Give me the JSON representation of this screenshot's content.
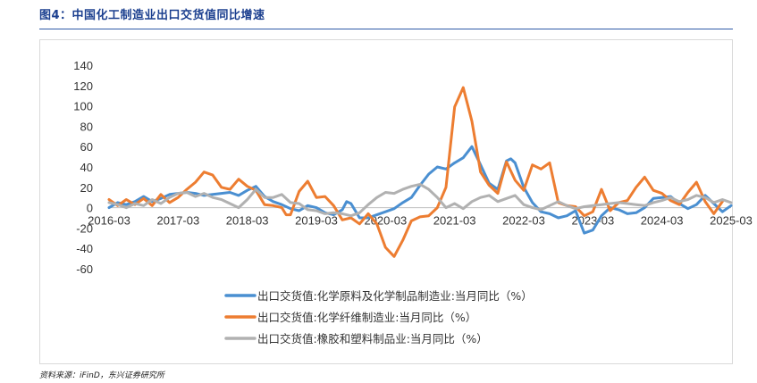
{
  "figure": {
    "title": "图4：中国化工制造业出口交货值同比增速",
    "source": "资料来源：iFinD，东兴证券研究所"
  },
  "chart_data": {
    "type": "line",
    "title": "中国化工制造业出口交货值同比增速",
    "xlabel": "",
    "ylabel": "",
    "ylim": [
      -60,
      140
    ],
    "yticks": [
      -60,
      -40,
      -20,
      0,
      20,
      40,
      60,
      80,
      100,
      120,
      140
    ],
    "x_tick_labels": [
      "2016-03",
      "2017-03",
      "2018-03",
      "2019-03",
      "2020-03",
      "2021-03",
      "2022-03",
      "2023-03",
      "2024-03",
      "2025-03"
    ],
    "x_start": "2016-03",
    "x_end": "2025-03",
    "grid": false,
    "legend_position": "bottom",
    "series": [
      {
        "name": "出口交货值:化学原料及化学制品制造业:当月同比（%）",
        "color": "#4a8fd1",
        "points": [
          [
            0,
            0
          ],
          [
            2,
            5
          ],
          [
            4,
            3
          ],
          [
            6,
            6
          ],
          [
            8,
            11
          ],
          [
            10,
            6
          ],
          [
            12,
            9
          ],
          [
            14,
            13
          ],
          [
            16,
            14
          ],
          [
            18,
            15
          ],
          [
            20,
            14
          ],
          [
            22,
            12
          ],
          [
            24,
            13
          ],
          [
            26,
            14
          ],
          [
            28,
            15
          ],
          [
            30,
            12
          ],
          [
            32,
            17
          ],
          [
            34,
            21
          ],
          [
            36,
            11
          ],
          [
            38,
            6
          ],
          [
            40,
            3
          ],
          [
            42,
            -1
          ],
          [
            44,
            -3
          ],
          [
            46,
            2
          ],
          [
            48,
            0
          ],
          [
            50,
            -5
          ],
          [
            52,
            -7
          ],
          [
            54,
            -2
          ],
          [
            55,
            6
          ],
          [
            56,
            4
          ],
          [
            58,
            -10
          ],
          [
            60,
            -10
          ],
          [
            62,
            -7
          ],
          [
            64,
            -4
          ],
          [
            66,
            -1
          ],
          [
            68,
            5
          ],
          [
            70,
            10
          ],
          [
            72,
            22
          ],
          [
            74,
            33
          ],
          [
            76,
            40
          ],
          [
            78,
            38
          ],
          [
            80,
            44
          ],
          [
            82,
            49
          ],
          [
            84,
            60
          ],
          [
            86,
            42
          ],
          [
            88,
            24
          ],
          [
            90,
            18
          ],
          [
            92,
            46
          ],
          [
            93,
            48
          ],
          [
            94,
            44
          ],
          [
            96,
            20
          ],
          [
            98,
            5
          ],
          [
            100,
            -4
          ],
          [
            102,
            -6
          ],
          [
            104,
            -10
          ],
          [
            106,
            -8
          ],
          [
            108,
            -3
          ],
          [
            110,
            -25
          ],
          [
            112,
            -22
          ],
          [
            114,
            -8
          ],
          [
            116,
            0
          ],
          [
            118,
            -2
          ],
          [
            120,
            -6
          ],
          [
            122,
            -5
          ],
          [
            124,
            0
          ],
          [
            126,
            9
          ],
          [
            128,
            10
          ],
          [
            130,
            11
          ],
          [
            132,
            4
          ],
          [
            134,
            -1
          ],
          [
            136,
            3
          ],
          [
            138,
            12
          ],
          [
            140,
            4
          ],
          [
            142,
            -4
          ],
          [
            144,
            2
          ]
        ]
      },
      {
        "name": "出口交货值:化学纤维制造业:当月同比（%）",
        "color": "#ed7d31",
        "points": [
          [
            0,
            8
          ],
          [
            2,
            2
          ],
          [
            4,
            8
          ],
          [
            6,
            3
          ],
          [
            8,
            9
          ],
          [
            10,
            2
          ],
          [
            12,
            13
          ],
          [
            14,
            5
          ],
          [
            16,
            10
          ],
          [
            18,
            18
          ],
          [
            20,
            25
          ],
          [
            22,
            35
          ],
          [
            24,
            32
          ],
          [
            26,
            20
          ],
          [
            28,
            18
          ],
          [
            30,
            28
          ],
          [
            32,
            21
          ],
          [
            34,
            17
          ],
          [
            36,
            3
          ],
          [
            38,
            2
          ],
          [
            40,
            0
          ],
          [
            41,
            -7
          ],
          [
            42,
            -7
          ],
          [
            44,
            16
          ],
          [
            46,
            26
          ],
          [
            48,
            10
          ],
          [
            50,
            11
          ],
          [
            52,
            2
          ],
          [
            54,
            -12
          ],
          [
            56,
            -10
          ],
          [
            58,
            -16
          ],
          [
            60,
            -6
          ],
          [
            62,
            -16
          ],
          [
            64,
            -39
          ],
          [
            66,
            -48
          ],
          [
            68,
            -32
          ],
          [
            70,
            -13
          ],
          [
            72,
            -9
          ],
          [
            74,
            -8
          ],
          [
            76,
            0
          ],
          [
            78,
            20
          ],
          [
            80,
            99
          ],
          [
            82,
            118
          ],
          [
            84,
            85
          ],
          [
            86,
            35
          ],
          [
            88,
            22
          ],
          [
            90,
            14
          ],
          [
            92,
            45
          ],
          [
            94,
            27
          ],
          [
            96,
            17
          ],
          [
            98,
            42
          ],
          [
            100,
            38
          ],
          [
            102,
            44
          ],
          [
            104,
            5
          ],
          [
            106,
            2
          ],
          [
            108,
            1
          ],
          [
            110,
            -8
          ],
          [
            112,
            -4
          ],
          [
            114,
            18
          ],
          [
            116,
            -3
          ],
          [
            118,
            5
          ],
          [
            120,
            7
          ],
          [
            122,
            20
          ],
          [
            124,
            30
          ],
          [
            126,
            17
          ],
          [
            128,
            14
          ],
          [
            130,
            7
          ],
          [
            132,
            3
          ],
          [
            134,
            15
          ],
          [
            136,
            25
          ],
          [
            138,
            6
          ],
          [
            140,
            -6
          ],
          [
            142,
            6
          ]
        ]
      },
      {
        "name": "出口交货值:橡胶和塑料制品业:当月同比（%）",
        "color": "#b1b1b1",
        "points": [
          [
            0,
            5
          ],
          [
            2,
            3
          ],
          [
            4,
            0
          ],
          [
            6,
            4
          ],
          [
            8,
            2
          ],
          [
            10,
            8
          ],
          [
            12,
            4
          ],
          [
            14,
            10
          ],
          [
            16,
            14
          ],
          [
            18,
            15
          ],
          [
            20,
            11
          ],
          [
            22,
            14
          ],
          [
            24,
            10
          ],
          [
            26,
            8
          ],
          [
            28,
            4
          ],
          [
            30,
            0
          ],
          [
            32,
            8
          ],
          [
            34,
            18
          ],
          [
            36,
            10
          ],
          [
            38,
            10
          ],
          [
            40,
            13
          ],
          [
            42,
            5
          ],
          [
            44,
            4
          ],
          [
            46,
            -2
          ],
          [
            48,
            -3
          ],
          [
            50,
            -6
          ],
          [
            52,
            -5
          ],
          [
            54,
            -6
          ],
          [
            56,
            -8
          ],
          [
            58,
            -5
          ],
          [
            60,
            3
          ],
          [
            62,
            10
          ],
          [
            64,
            15
          ],
          [
            66,
            14
          ],
          [
            68,
            18
          ],
          [
            70,
            21
          ],
          [
            72,
            23
          ],
          [
            74,
            18
          ],
          [
            76,
            10
          ],
          [
            78,
            0
          ],
          [
            80,
            4
          ],
          [
            82,
            -1
          ],
          [
            84,
            6
          ],
          [
            86,
            10
          ],
          [
            88,
            12
          ],
          [
            90,
            6
          ],
          [
            92,
            9
          ],
          [
            94,
            12
          ],
          [
            96,
            3
          ],
          [
            98,
            0
          ],
          [
            100,
            -2
          ],
          [
            102,
            2
          ],
          [
            104,
            6
          ],
          [
            106,
            2
          ],
          [
            108,
            -1
          ],
          [
            110,
            1
          ],
          [
            112,
            2
          ],
          [
            114,
            3
          ],
          [
            116,
            4
          ],
          [
            118,
            5
          ],
          [
            120,
            4
          ],
          [
            122,
            3
          ],
          [
            124,
            2
          ],
          [
            126,
            5
          ],
          [
            128,
            7
          ],
          [
            130,
            10
          ],
          [
            132,
            6
          ],
          [
            134,
            8
          ],
          [
            136,
            12
          ],
          [
            138,
            10
          ],
          [
            140,
            5
          ],
          [
            142,
            8
          ],
          [
            144,
            5
          ]
        ]
      }
    ]
  }
}
